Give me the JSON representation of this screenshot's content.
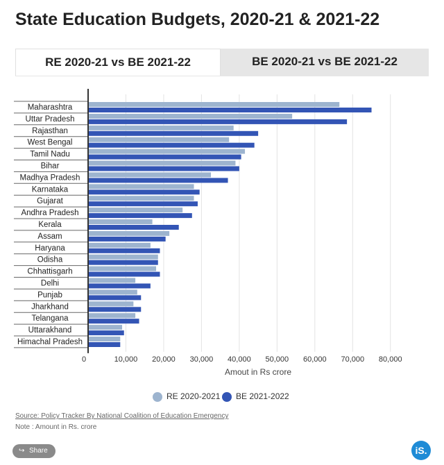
{
  "title": "State Education Budgets, 2020-21 & 2021-22",
  "tabs": [
    {
      "label": "RE 2020-21 vs BE 2021-22",
      "active": true
    },
    {
      "label": "BE 2020-21 vs BE 2021-22",
      "active": false
    }
  ],
  "legend": [
    {
      "label": "RE 2020-2021",
      "color": "#9db4cf"
    },
    {
      "label": "BE 2021-2022",
      "color": "#3355b5"
    }
  ],
  "source_text": "Source: Policy Tracker By National Coalition of Education Emergency",
  "note_text": "Note : Amount in Rs. crore",
  "share_label": "Share",
  "share_icon": "share-icon",
  "logo_text": "iS.",
  "chart_data": {
    "type": "bar",
    "orientation": "horizontal",
    "title": "",
    "xlabel": "Amout in Rs crore",
    "ylabel": "",
    "xlim": [
      0,
      85000
    ],
    "xticks": [
      0,
      10000,
      20000,
      30000,
      40000,
      50000,
      60000,
      70000,
      80000
    ],
    "xtick_labels": [
      "0",
      "10,000",
      "20,000",
      "30,000",
      "40,000",
      "50,000",
      "60,000",
      "70,000",
      "80,000"
    ],
    "grid": true,
    "legend_position": "bottom",
    "categories": [
      "Maharashtra",
      "Uttar Pradesh",
      "Rajasthan",
      "West Bengal",
      "Tamil Nadu",
      "Bihar",
      "Madhya Pradesh",
      "Karnataka",
      "Gujarat",
      "Andhra Pradesh",
      "Kerala",
      "Assam",
      "Haryana",
      "Odisha",
      "Chhattisgarh",
      "Delhi",
      "Punjab",
      "Jharkhand",
      "Telangana",
      "Uttarakhand",
      "Himachal Pradesh"
    ],
    "series": [
      {
        "name": "RE 2020-2021",
        "color": "#9db4cf",
        "values": [
          66500,
          54000,
          38500,
          37300,
          41500,
          39000,
          32500,
          28000,
          28000,
          25000,
          17000,
          21500,
          16500,
          18500,
          18000,
          12500,
          13000,
          12000,
          12500,
          9000,
          8500
        ]
      },
      {
        "name": "BE 2021-2022",
        "color": "#3355b5",
        "values": [
          75000,
          68500,
          45000,
          44000,
          40500,
          40000,
          37000,
          29500,
          29000,
          27500,
          24000,
          20500,
          19000,
          18500,
          19000,
          16500,
          14000,
          14000,
          13500,
          9500,
          8500
        ]
      }
    ]
  }
}
